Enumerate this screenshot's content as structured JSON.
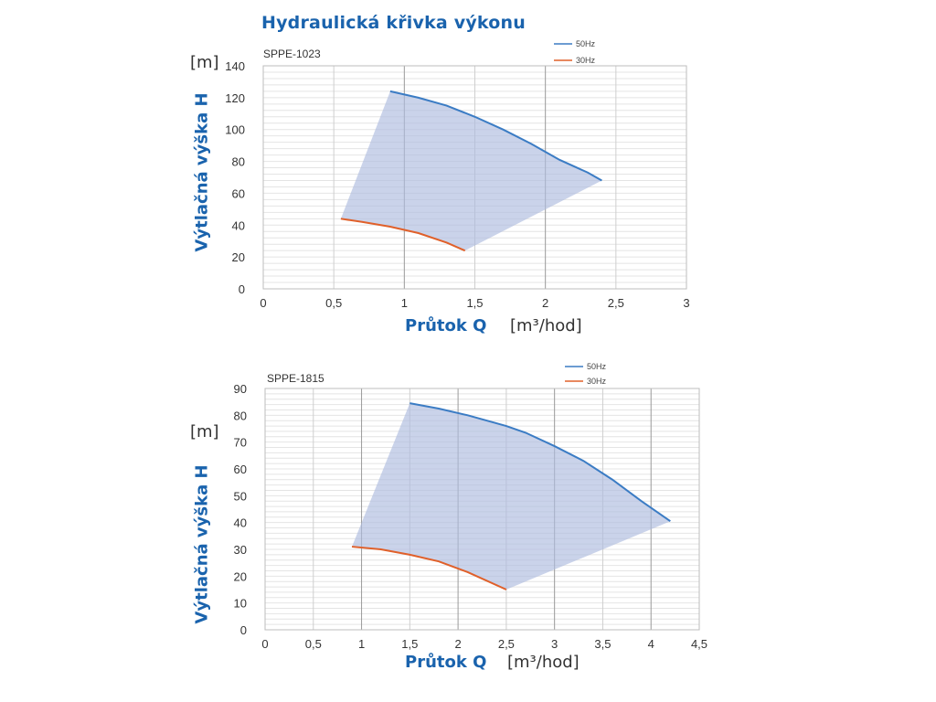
{
  "page": {
    "title": "Hydraulická křivka výkonu"
  },
  "chart_data": [
    {
      "type": "area",
      "title": "SPPE-1023",
      "unit_label": "[m]",
      "ylabel": "Výtlačná výška H",
      "xlabel": "Průtok Q",
      "xunit": "[m³/hod]",
      "xlim": [
        0,
        3
      ],
      "ylim": [
        0,
        140
      ],
      "xticks": [
        "0",
        "0,5",
        "1",
        "1,5",
        "2",
        "2,5",
        "3"
      ],
      "yticks": [
        "0",
        "20",
        "40",
        "60",
        "80",
        "100",
        "120",
        "140"
      ],
      "grid": true,
      "legend_position": "top-right",
      "series": [
        {
          "name": "50Hz",
          "color": "#3b7cc4",
          "x": [
            0.9,
            1.1,
            1.3,
            1.5,
            1.7,
            1.9,
            2.1,
            2.3,
            2.4
          ],
          "y": [
            124,
            120,
            115,
            108,
            100,
            91,
            81,
            73,
            68
          ]
        },
        {
          "name": "30Hz",
          "color": "#e0602a",
          "x": [
            0.55,
            0.7,
            0.9,
            1.1,
            1.3,
            1.43
          ],
          "y": [
            44,
            42,
            39,
            35,
            29,
            24
          ]
        }
      ],
      "fill_color": "#aebbdf"
    },
    {
      "type": "area",
      "title": "SPPE-1815",
      "unit_label": "[m]",
      "ylabel": "Výtlačná výška H",
      "xlabel": "Průtok Q",
      "xunit": "[m³/hod]",
      "xlim": [
        0,
        4.5
      ],
      "ylim": [
        0,
        90
      ],
      "xticks": [
        "0",
        "0,5",
        "1",
        "1,5",
        "2",
        "2,5",
        "3",
        "3,5",
        "4",
        "4,5"
      ],
      "yticks": [
        "0",
        "10",
        "20",
        "30",
        "40",
        "50",
        "60",
        "70",
        "80",
        "90"
      ],
      "grid": true,
      "legend_position": "top-right",
      "series": [
        {
          "name": "50Hz",
          "color": "#3b7cc4",
          "x": [
            1.5,
            1.8,
            2.1,
            2.5,
            2.7,
            3.0,
            3.3,
            3.6,
            3.9,
            4.2
          ],
          "y": [
            84.5,
            82.5,
            80,
            76,
            73.5,
            68.5,
            63,
            56,
            48,
            40.5
          ]
        },
        {
          "name": "30Hz",
          "color": "#e0602a",
          "x": [
            0.9,
            1.2,
            1.5,
            1.8,
            2.1,
            2.5
          ],
          "y": [
            31,
            30,
            28,
            25.5,
            21.5,
            15
          ]
        }
      ],
      "fill_color": "#aebbdf"
    }
  ]
}
